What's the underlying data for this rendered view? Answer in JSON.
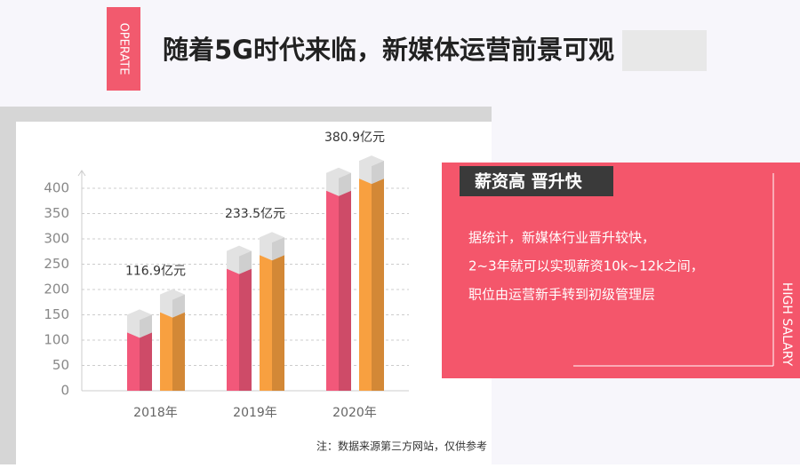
{
  "header": {
    "tag": "OPERATE",
    "title": "随着5G时代来临，新媒体运营前景可观"
  },
  "chart_data": {
    "type": "bar",
    "categories": [
      "2018年",
      "2019年",
      "2020年"
    ],
    "series": [
      {
        "color": "#f2587a",
        "values": [
          115,
          241,
          395
        ]
      },
      {
        "color": "#f8a040",
        "values": [
          155,
          268,
          419
        ]
      }
    ],
    "annotations": [
      "116.9亿元",
      "233.5亿元",
      "380.9亿元"
    ],
    "ylim": [
      0,
      435
    ],
    "yticks": [
      0,
      50,
      100,
      150,
      200,
      250,
      300,
      350,
      400
    ],
    "grid": true
  },
  "panel": {
    "heading": "薪资高 晋升快",
    "lines": [
      "据统计，新媒体行业晋升较快，",
      "2~3年就可以实现薪资10k~12k之间，",
      "职位由运营新手转到初级管理层"
    ],
    "side": "HIGH SALARY"
  },
  "note": "注：数据来源第三方网站，仅供参考"
}
